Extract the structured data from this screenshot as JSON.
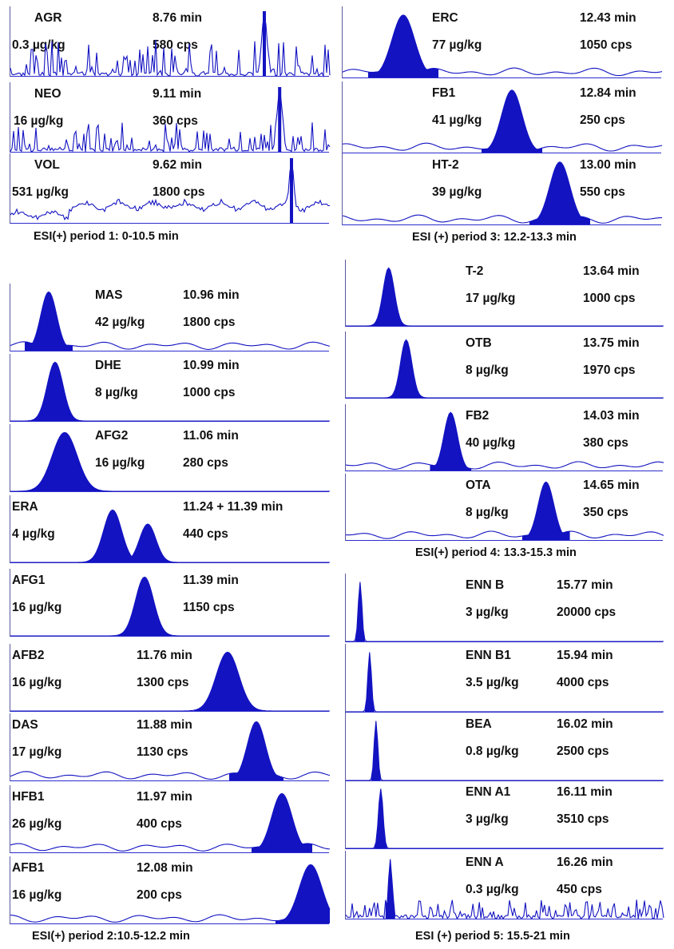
{
  "chart_data": [
    {
      "type": "line",
      "caption": "ESI(+) period 1: 0-10.5 min",
      "panels": [
        {
          "compound": "AGR",
          "conc": "0.3 µg/kg",
          "rt": "8.76 min",
          "cps": "580 cps",
          "apex": 0.795,
          "width": 0.012,
          "noise": 0.55,
          "baseline": "noisy",
          "fill": false
        },
        {
          "compound": "NEO",
          "conc": "16 µg/kg",
          "rt": "9.11 min",
          "cps": "360 cps",
          "apex": 0.843,
          "width": 0.012,
          "noise": 0.45,
          "baseline": "noisy",
          "fill": false
        },
        {
          "compound": "VOL",
          "conc": "531 µg/kg",
          "rt": "9.62 min",
          "cps": "1800 cps",
          "apex": 0.88,
          "width": 0.012,
          "noise": 0.12,
          "baseline": "raised",
          "fill": false
        }
      ]
    },
    {
      "type": "line",
      "caption": "ESI(+) period 2:10.5-12.2 min",
      "panels": [
        {
          "compound": "MAS",
          "conc": "42 µg/kg",
          "rt": "10.96 min",
          "cps": "1800 cps",
          "apex": 0.12,
          "width": 0.035,
          "baseline": "wavy",
          "fill": true
        },
        {
          "compound": "DHE",
          "conc": "8 µg/kg",
          "rt": "10.99 min",
          "cps": "1000 cps",
          "apex": 0.14,
          "width": 0.035,
          "baseline": "flat",
          "fill": true
        },
        {
          "compound": "AFG2",
          "conc": "16 µg/kg",
          "rt": "11.06 min",
          "cps": "280 cps",
          "apex": 0.17,
          "width": 0.055,
          "baseline": "flat",
          "fill": true
        },
        {
          "compound": "ERA",
          "conc": "4 µg/kg",
          "rt": "11.24 + 11.39 min",
          "cps": "440 cps",
          "apex": 0.32,
          "apex2": 0.43,
          "width": 0.04,
          "baseline": "flat",
          "fill": true
        },
        {
          "compound": "AFG1",
          "conc": "16 µg/kg",
          "rt": "11.39 min",
          "cps": "1150 cps",
          "apex": 0.42,
          "width": 0.04,
          "baseline": "flat",
          "fill": true
        },
        {
          "compound": "AFB2",
          "conc": "16 µg/kg",
          "rt": "11.76 min",
          "cps": "1300 cps",
          "apex": 0.68,
          "width": 0.05,
          "baseline": "flat",
          "fill": true
        },
        {
          "compound": "DAS",
          "conc": "17 µg/kg",
          "rt": "11.88 min",
          "cps": "1130 cps",
          "apex": 0.77,
          "width": 0.04,
          "baseline": "wavy",
          "fill": true
        },
        {
          "compound": "HFB1",
          "conc": "26 µg/kg",
          "rt": "11.97 min",
          "cps": "400 cps",
          "apex": 0.85,
          "width": 0.045,
          "baseline": "wavy",
          "fill": true
        },
        {
          "compound": "AFB1",
          "conc": "16 µg/kg",
          "rt": "12.08 min",
          "cps": "200 cps",
          "apex": 0.94,
          "width": 0.05,
          "baseline": "wavy",
          "fill": true
        }
      ]
    },
    {
      "type": "line",
      "caption": "ESI (+) period 3: 12.2-13.3 min",
      "panels": [
        {
          "compound": "ERC",
          "conc": "77 µg/kg",
          "rt": "12.43 min",
          "cps": "1050 cps",
          "apex": 0.19,
          "width": 0.05,
          "baseline": "wavy",
          "fill": true
        },
        {
          "compound": "FB1",
          "conc": "41 µg/kg",
          "rt": "12.84 min",
          "cps": "250 cps",
          "apex": 0.53,
          "width": 0.045,
          "baseline": "wavy",
          "fill": true
        },
        {
          "compound": "HT-2",
          "conc": "39 µg/kg",
          "rt": "13.00 min",
          "cps": "550 cps",
          "apex": 0.68,
          "width": 0.045,
          "baseline": "wavy",
          "fill": true
        }
      ]
    },
    {
      "type": "line",
      "caption": "ESI(+) period 4: 13.3-15.3 min",
      "panels": [
        {
          "compound": "T-2",
          "conc": "17 µg/kg",
          "rt": "13.64 min",
          "cps": "1000 cps",
          "apex": 0.135,
          "width": 0.025,
          "baseline": "flat",
          "fill": true
        },
        {
          "compound": "OTB",
          "conc": "8 µg/kg",
          "rt": "13.75 min",
          "cps": "1970 cps",
          "apex": 0.19,
          "width": 0.025,
          "baseline": "flat",
          "fill": true
        },
        {
          "compound": "FB2",
          "conc": "40 µg/kg",
          "rt": "14.03 min",
          "cps": "380 cps",
          "apex": 0.33,
          "width": 0.03,
          "baseline": "wavy",
          "fill": true
        },
        {
          "compound": "OTA",
          "conc": "8 µg/kg",
          "rt": "14.65 min",
          "cps": "350 cps",
          "apex": 0.63,
          "width": 0.035,
          "baseline": "wavy",
          "fill": true
        }
      ]
    },
    {
      "type": "line",
      "caption": "ESI (+) period 5: 15.5-21 min",
      "panels": [
        {
          "compound": "ENN B",
          "conc": "3 µg/kg",
          "rt": "15.77 min",
          "cps": "20000 cps",
          "apex": 0.045,
          "width": 0.008,
          "baseline": "flat",
          "fill": true
        },
        {
          "compound": "ENN B1",
          "conc": "3.5 µg/kg",
          "rt": "15.94 min",
          "cps": "4000 cps",
          "apex": 0.075,
          "width": 0.008,
          "baseline": "flat",
          "fill": true
        },
        {
          "compound": "BEA",
          "conc": "0.8 µg/kg",
          "rt": "16.02 min",
          "cps": "2500 cps",
          "apex": 0.095,
          "width": 0.008,
          "baseline": "flat",
          "fill": true
        },
        {
          "compound": "ENN A1",
          "conc": "3 µg/kg",
          "rt": "16.11 min",
          "cps": "3510 cps",
          "apex": 0.11,
          "width": 0.01,
          "baseline": "flat",
          "fill": true
        },
        {
          "compound": "ENN A",
          "conc": "0.3 µg/kg",
          "rt": "16.26 min",
          "cps": "450 cps",
          "apex": 0.14,
          "width": 0.008,
          "baseline": "noisy",
          "noise": 0.3,
          "fill": true
        }
      ]
    }
  ],
  "colors": {
    "peak": "#1313c2",
    "axis": "#2c2ccf",
    "text": "#111111"
  }
}
